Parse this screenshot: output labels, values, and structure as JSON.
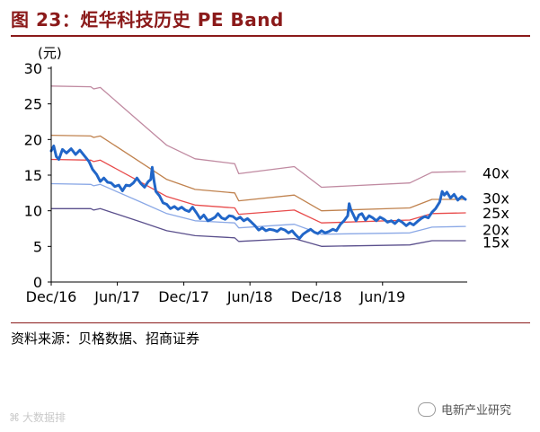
{
  "figure_title": "图 23：炬华科技历史 PE Band",
  "source": "资料来源：贝格数据、招商证券",
  "watermark": {
    "left": "大数据排",
    "right": "电新产业研究"
  },
  "chart_data": {
    "type": "line",
    "y_unit": "(元)",
    "ylim": [
      0,
      30
    ],
    "yticks": [
      0,
      5,
      10,
      15,
      20,
      25,
      30
    ],
    "xlim": [
      "2016-12-01",
      "2020-01-20"
    ],
    "xticks": [
      {
        "date": "2016-12-01",
        "label": "Dec/16"
      },
      {
        "date": "2017-06-01",
        "label": "Jun/17"
      },
      {
        "date": "2017-12-01",
        "label": "Dec/17"
      },
      {
        "date": "2018-06-01",
        "label": "Jun/18"
      },
      {
        "date": "2018-12-01",
        "label": "Dec/18"
      },
      {
        "date": "2019-06-01",
        "label": "Jun/19"
      }
    ],
    "grid": false,
    "legend": "direct-labels-right",
    "series": [
      {
        "name": "40x",
        "color": "#c08aa1",
        "width": 1.3,
        "points": [
          [
            "2016-12-01",
            27.5
          ],
          [
            "2017-03-20",
            27.4
          ],
          [
            "2017-03-28",
            27.1
          ],
          [
            "2017-04-15",
            27.3
          ],
          [
            "2017-08-01",
            22.5
          ],
          [
            "2017-10-15",
            19.2
          ],
          [
            "2018-01-01",
            17.3
          ],
          [
            "2018-04-20",
            16.6
          ],
          [
            "2018-05-01",
            15.2
          ],
          [
            "2018-10-01",
            16.2
          ],
          [
            "2018-12-15",
            13.3
          ],
          [
            "2019-08-15",
            13.9
          ],
          [
            "2019-10-15",
            15.4
          ],
          [
            "2020-01-15",
            15.5
          ]
        ]
      },
      {
        "name": "30x",
        "color": "#c0824e",
        "width": 1.3,
        "points": [
          [
            "2016-12-01",
            20.6
          ],
          [
            "2017-03-20",
            20.5
          ],
          [
            "2017-03-28",
            20.3
          ],
          [
            "2017-04-15",
            20.5
          ],
          [
            "2017-08-01",
            16.9
          ],
          [
            "2017-10-15",
            14.4
          ],
          [
            "2018-01-01",
            13.0
          ],
          [
            "2018-04-20",
            12.5
          ],
          [
            "2018-05-01",
            11.4
          ],
          [
            "2018-10-01",
            12.2
          ],
          [
            "2018-12-15",
            10.0
          ],
          [
            "2019-08-15",
            10.4
          ],
          [
            "2019-10-15",
            11.6
          ],
          [
            "2020-01-15",
            11.6
          ]
        ]
      },
      {
        "name": "25x",
        "color": "#e84b4b",
        "width": 1.3,
        "points": [
          [
            "2016-12-01",
            17.2
          ],
          [
            "2017-03-20",
            17.1
          ],
          [
            "2017-03-28",
            16.9
          ],
          [
            "2017-04-15",
            17.1
          ],
          [
            "2017-08-01",
            14.1
          ],
          [
            "2017-10-15",
            12.0
          ],
          [
            "2018-01-01",
            10.8
          ],
          [
            "2018-04-20",
            10.4
          ],
          [
            "2018-05-01",
            9.5
          ],
          [
            "2018-10-01",
            10.1
          ],
          [
            "2018-12-15",
            8.3
          ],
          [
            "2019-08-15",
            8.7
          ],
          [
            "2019-10-15",
            9.6
          ],
          [
            "2020-01-15",
            9.7
          ]
        ]
      },
      {
        "name": "20x",
        "color": "#8aa8e6",
        "width": 1.3,
        "points": [
          [
            "2016-12-01",
            13.8
          ],
          [
            "2017-03-20",
            13.7
          ],
          [
            "2017-03-28",
            13.5
          ],
          [
            "2017-04-15",
            13.7
          ],
          [
            "2017-08-01",
            11.3
          ],
          [
            "2017-10-15",
            9.6
          ],
          [
            "2018-01-01",
            8.6
          ],
          [
            "2018-04-20",
            8.3
          ],
          [
            "2018-05-01",
            7.6
          ],
          [
            "2018-10-01",
            8.1
          ],
          [
            "2018-12-15",
            6.7
          ],
          [
            "2019-08-15",
            6.9
          ],
          [
            "2019-10-15",
            7.7
          ],
          [
            "2020-01-15",
            7.8
          ]
        ]
      },
      {
        "name": "15x",
        "color": "#5a4f8c",
        "width": 1.3,
        "points": [
          [
            "2016-12-01",
            10.3
          ],
          [
            "2017-03-20",
            10.3
          ],
          [
            "2017-03-28",
            10.1
          ],
          [
            "2017-04-15",
            10.3
          ],
          [
            "2017-08-01",
            8.5
          ],
          [
            "2017-10-15",
            7.2
          ],
          [
            "2018-01-01",
            6.5
          ],
          [
            "2018-04-20",
            6.2
          ],
          [
            "2018-05-01",
            5.7
          ],
          [
            "2018-10-01",
            6.1
          ],
          [
            "2018-12-15",
            5.0
          ],
          [
            "2019-08-15",
            5.2
          ],
          [
            "2019-10-15",
            5.8
          ],
          [
            "2020-01-15",
            5.8
          ]
        ]
      },
      {
        "name": "",
        "role": "price",
        "color": "#2166c8",
        "width": 3,
        "points": [
          [
            "2016-12-01",
            18.4
          ],
          [
            "2016-12-08",
            19.1
          ],
          [
            "2016-12-15",
            17.6
          ],
          [
            "2016-12-22",
            17.2
          ],
          [
            "2017-01-01",
            18.6
          ],
          [
            "2017-01-12",
            18.1
          ],
          [
            "2017-01-25",
            18.7
          ],
          [
            "2017-02-06",
            17.9
          ],
          [
            "2017-02-18",
            18.5
          ],
          [
            "2017-03-01",
            17.8
          ],
          [
            "2017-03-15",
            16.9
          ],
          [
            "2017-03-25",
            15.8
          ],
          [
            "2017-04-05",
            15.1
          ],
          [
            "2017-04-15",
            14.1
          ],
          [
            "2017-04-25",
            14.6
          ],
          [
            "2017-05-05",
            14.0
          ],
          [
            "2017-05-15",
            13.9
          ],
          [
            "2017-05-25",
            13.4
          ],
          [
            "2017-06-05",
            13.6
          ],
          [
            "2017-06-15",
            12.8
          ],
          [
            "2017-06-25",
            13.6
          ],
          [
            "2017-07-05",
            13.5
          ],
          [
            "2017-07-15",
            13.9
          ],
          [
            "2017-07-25",
            14.6
          ],
          [
            "2017-08-05",
            13.8
          ],
          [
            "2017-08-15",
            13.3
          ],
          [
            "2017-08-25",
            14.1
          ],
          [
            "2017-09-01",
            14.4
          ],
          [
            "2017-09-05",
            16.1
          ],
          [
            "2017-09-10",
            14.2
          ],
          [
            "2017-09-15",
            12.7
          ],
          [
            "2017-09-25",
            12.1
          ],
          [
            "2017-10-05",
            11.1
          ],
          [
            "2017-10-15",
            10.9
          ],
          [
            "2017-10-25",
            10.3
          ],
          [
            "2017-11-05",
            10.6
          ],
          [
            "2017-11-15",
            10.2
          ],
          [
            "2017-11-25",
            10.5
          ],
          [
            "2017-12-05",
            10.1
          ],
          [
            "2017-12-15",
            9.9
          ],
          [
            "2017-12-25",
            10.5
          ],
          [
            "2018-01-05",
            9.7
          ],
          [
            "2018-01-15",
            8.9
          ],
          [
            "2018-01-25",
            9.4
          ],
          [
            "2018-02-05",
            8.6
          ],
          [
            "2018-02-15",
            8.8
          ],
          [
            "2018-02-25",
            9.1
          ],
          [
            "2018-03-05",
            9.6
          ],
          [
            "2018-03-15",
            9.0
          ],
          [
            "2018-03-25",
            8.8
          ],
          [
            "2018-04-05",
            9.3
          ],
          [
            "2018-04-15",
            9.2
          ],
          [
            "2018-04-25",
            8.8
          ],
          [
            "2018-05-05",
            9.1
          ],
          [
            "2018-05-15",
            8.6
          ],
          [
            "2018-05-25",
            8.9
          ],
          [
            "2018-06-05",
            8.4
          ],
          [
            "2018-06-15",
            7.9
          ],
          [
            "2018-06-25",
            7.3
          ],
          [
            "2018-07-05",
            7.6
          ],
          [
            "2018-07-15",
            7.2
          ],
          [
            "2018-07-25",
            7.4
          ],
          [
            "2018-08-05",
            7.3
          ],
          [
            "2018-08-15",
            7.1
          ],
          [
            "2018-08-25",
            7.5
          ],
          [
            "2018-09-05",
            7.3
          ],
          [
            "2018-09-15",
            6.9
          ],
          [
            "2018-09-25",
            7.2
          ],
          [
            "2018-10-05",
            6.6
          ],
          [
            "2018-10-15",
            6.1
          ],
          [
            "2018-10-25",
            6.7
          ],
          [
            "2018-11-05",
            7.1
          ],
          [
            "2018-11-15",
            7.4
          ],
          [
            "2018-11-25",
            7.0
          ],
          [
            "2018-12-05",
            6.8
          ],
          [
            "2018-12-15",
            7.2
          ],
          [
            "2018-12-25",
            6.9
          ],
          [
            "2019-01-05",
            7.1
          ],
          [
            "2019-01-15",
            7.4
          ],
          [
            "2019-01-25",
            7.2
          ],
          [
            "2019-02-05",
            8.1
          ],
          [
            "2019-02-15",
            8.6
          ],
          [
            "2019-02-25",
            9.3
          ],
          [
            "2019-03-01",
            11.0
          ],
          [
            "2019-03-06",
            10.1
          ],
          [
            "2019-03-12",
            9.5
          ],
          [
            "2019-03-20",
            8.6
          ],
          [
            "2019-03-28",
            9.4
          ],
          [
            "2019-04-05",
            9.6
          ],
          [
            "2019-04-15",
            8.7
          ],
          [
            "2019-04-25",
            9.3
          ],
          [
            "2019-05-05",
            9.0
          ],
          [
            "2019-05-15",
            8.6
          ],
          [
            "2019-05-25",
            9.1
          ],
          [
            "2019-06-05",
            8.8
          ],
          [
            "2019-06-15",
            8.4
          ],
          [
            "2019-06-25",
            8.6
          ],
          [
            "2019-07-05",
            8.2
          ],
          [
            "2019-07-15",
            8.7
          ],
          [
            "2019-07-25",
            8.4
          ],
          [
            "2019-08-05",
            7.9
          ],
          [
            "2019-08-15",
            8.3
          ],
          [
            "2019-08-25",
            8.0
          ],
          [
            "2019-09-05",
            8.5
          ],
          [
            "2019-09-15",
            8.9
          ],
          [
            "2019-09-25",
            9.2
          ],
          [
            "2019-10-05",
            9.0
          ],
          [
            "2019-10-15",
            9.8
          ],
          [
            "2019-10-25",
            10.3
          ],
          [
            "2019-11-05",
            11.2
          ],
          [
            "2019-11-12",
            12.7
          ],
          [
            "2019-11-18",
            12.2
          ],
          [
            "2019-11-25",
            12.6
          ],
          [
            "2019-12-05",
            11.8
          ],
          [
            "2019-12-15",
            12.3
          ],
          [
            "2019-12-25",
            11.5
          ],
          [
            "2020-01-05",
            12.0
          ],
          [
            "2020-01-15",
            11.6
          ]
        ]
      }
    ],
    "series_label_positions": [
      {
        "series": "40x",
        "y": 15.3
      },
      {
        "series": "30x",
        "y": 11.8
      },
      {
        "series": "25x",
        "y": 9.7
      },
      {
        "series": "20x",
        "y": 7.4
      },
      {
        "series": "15x",
        "y": 5.6
      }
    ]
  }
}
